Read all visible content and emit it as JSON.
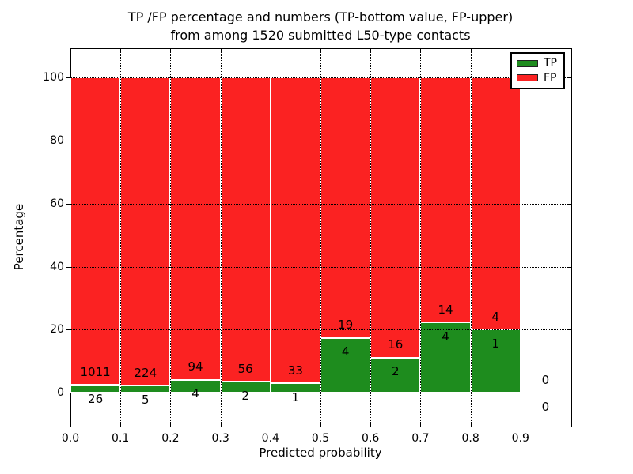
{
  "title": {
    "line1": "TP /FP percentage and numbers (TP-bottom value, FP-upper)",
    "line2": "from among 1520 submitted L50-type contacts"
  },
  "chart_data": {
    "type": "bar",
    "stacked": true,
    "normalized": "each bin scaled to 100%",
    "title": "TP /FP percentage and numbers (TP-bottom value, FP-upper) from among 1520 submitted L50-type contacts",
    "xlabel": "Predicted probability",
    "ylabel": "Percentage",
    "total_contacts": 1520,
    "bin_width": 0.1,
    "categories": [
      "0.0",
      "0.1",
      "0.2",
      "0.3",
      "0.4",
      "0.5",
      "0.6",
      "0.7",
      "0.8",
      "0.9"
    ],
    "series": [
      {
        "name": "TP",
        "color": "#1e8c1e",
        "counts": [
          26,
          5,
          4,
          2,
          1,
          4,
          2,
          4,
          1,
          0
        ]
      },
      {
        "name": "FP",
        "color": "#fb2222",
        "counts": [
          1011,
          224,
          94,
          56,
          33,
          19,
          16,
          14,
          4,
          0
        ]
      }
    ],
    "tp_percent_by_bin": [
      2.51,
      2.18,
      4.08,
      3.45,
      2.94,
      17.39,
      11.11,
      22.22,
      20.0,
      null
    ],
    "yticks": [
      0,
      20,
      40,
      60,
      80,
      100
    ],
    "xticks": [
      "0.0",
      "0.1",
      "0.2",
      "0.3",
      "0.4",
      "0.5",
      "0.6",
      "0.7",
      "0.8",
      "0.9"
    ],
    "xlim": [
      0.0,
      1.0
    ],
    "ylim_display": [
      -10.5,
      109.3
    ],
    "grid": "dotted, horizontal at yticks and vertical at xticks",
    "legend": {
      "position": "upper right",
      "entries": [
        {
          "label": "TP",
          "color": "#1e8c1e"
        },
        {
          "label": "FP",
          "color": "#fb2222"
        }
      ]
    }
  },
  "colors": {
    "tp": "#1e8c1e",
    "fp": "#fb2222",
    "bar_edge": "#ffffff",
    "grid": "#000000",
    "text": "#000000",
    "background": "#ffffff"
  }
}
